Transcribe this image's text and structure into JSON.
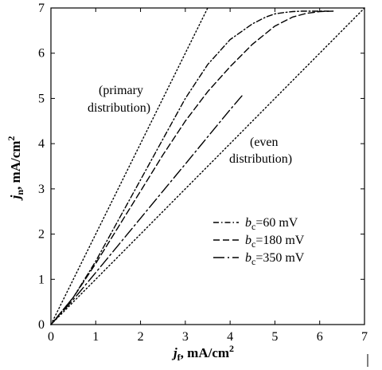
{
  "chart_data": {
    "type": "line",
    "xlabel_var": "j",
    "xlabel_sub": "f",
    "xlabel_rest": ", mA/cm",
    "xlabel_sup": "2",
    "ylabel_var": "j",
    "ylabel_sub": "n",
    "ylabel_rest": ", mA/cm",
    "ylabel_sup": "2",
    "xlim": [
      0,
      7
    ],
    "ylim": [
      0,
      7
    ],
    "xticks": [
      0,
      1,
      2,
      3,
      4,
      5,
      6,
      7
    ],
    "yticks": [
      0,
      1,
      2,
      3,
      4,
      5,
      6,
      7
    ],
    "grid": false,
    "legend_position": "bottom-right",
    "annotations": [
      {
        "key": "primary_1",
        "text": "(primary"
      },
      {
        "key": "primary_2",
        "text": "distribution)"
      },
      {
        "key": "even_1",
        "text": "(even"
      },
      {
        "key": "even_2",
        "text": "distribution)"
      }
    ],
    "series": [
      {
        "key": "primary",
        "style": "dotted",
        "x": [
          0,
          3.5
        ],
        "y": [
          0,
          7
        ]
      },
      {
        "key": "even",
        "style": "dotted",
        "x": [
          0,
          7
        ],
        "y": [
          0,
          7
        ]
      },
      {
        "key": "bc60",
        "legend_var": "b",
        "legend_sub": "c",
        "legend_rest": "=60 mV",
        "style": "dash-dot",
        "x": [
          0,
          0.5,
          1,
          1.5,
          2,
          2.5,
          3,
          3.5,
          4,
          4.5,
          4.8,
          5.0,
          5.2,
          5.4,
          5.6,
          5.8,
          6.0,
          6.2
        ],
        "y": [
          0,
          0.6,
          1.4,
          2.3,
          3.2,
          4.1,
          5.0,
          5.75,
          6.3,
          6.65,
          6.8,
          6.87,
          6.9,
          6.92,
          6.93,
          6.93,
          6.93,
          6.93
        ]
      },
      {
        "key": "bc180",
        "legend_var": "b",
        "legend_sub": "c",
        "legend_rest": "=180 mV",
        "style": "dashed",
        "x": [
          0,
          0.5,
          1,
          1.5,
          2,
          2.5,
          3,
          3.5,
          4,
          4.5,
          5.0,
          5.4,
          5.7,
          6.0,
          6.3
        ],
        "y": [
          0,
          0.6,
          1.35,
          2.15,
          2.95,
          3.75,
          4.5,
          5.15,
          5.7,
          6.2,
          6.6,
          6.8,
          6.88,
          6.92,
          6.93
        ]
      },
      {
        "key": "bc350",
        "legend_var": "b",
        "legend_sub": "c",
        "legend_rest": "=350 mV",
        "style": "long-dash-dot",
        "x": [
          0,
          0.5,
          1,
          1.5,
          2,
          2.5,
          3,
          3.5,
          4,
          4.3
        ],
        "y": [
          0,
          0.55,
          1.15,
          1.75,
          2.35,
          2.95,
          3.55,
          4.15,
          4.75,
          5.1
        ]
      }
    ]
  }
}
